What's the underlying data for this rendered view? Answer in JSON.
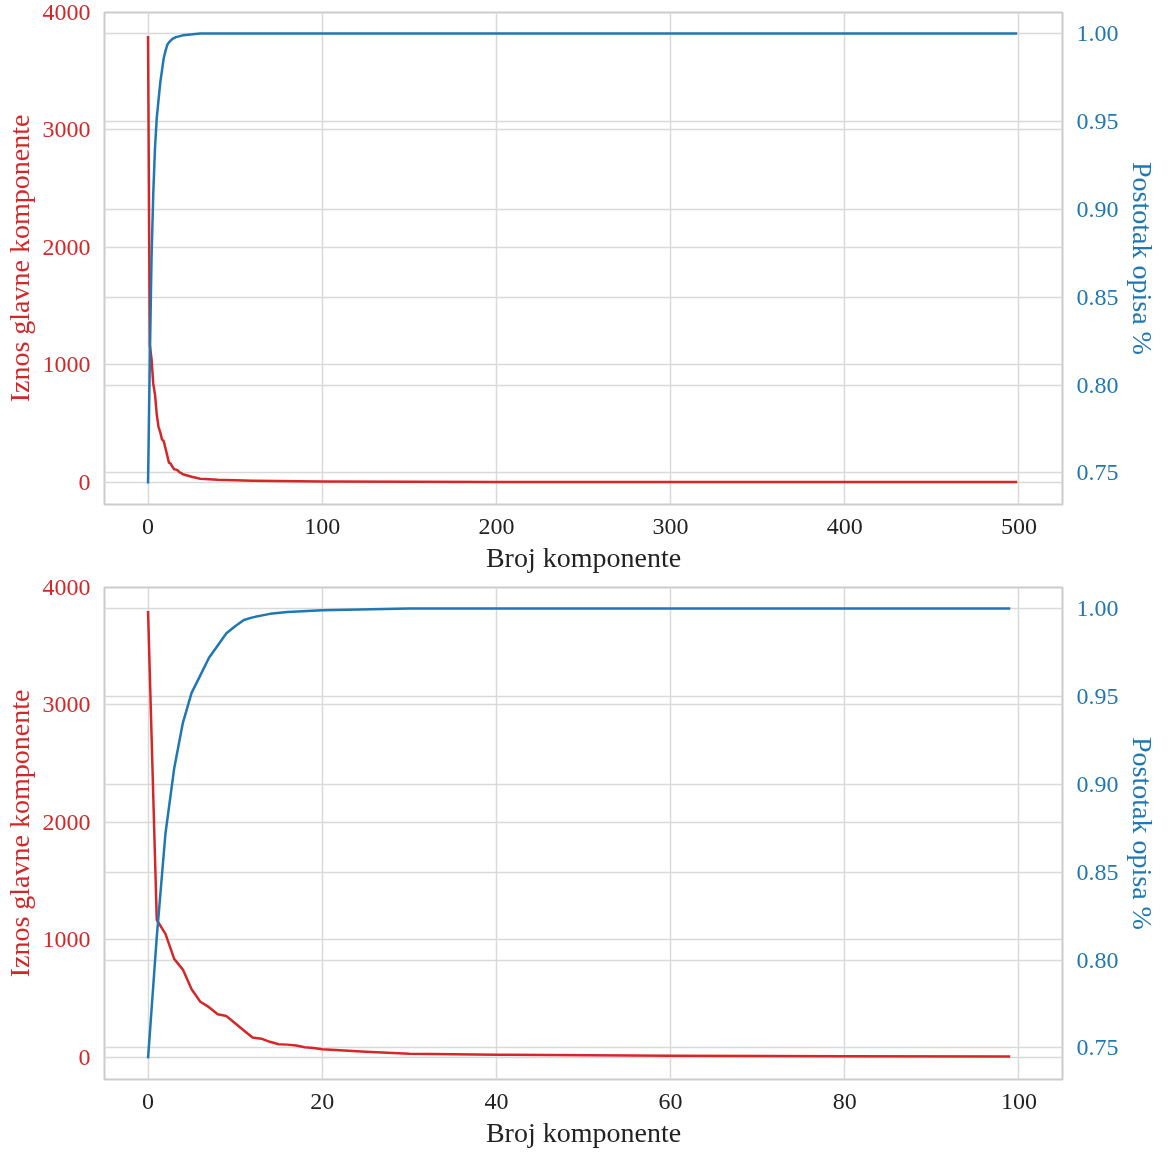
{
  "chart_data": [
    {
      "type": "line",
      "xlabel": "Broj komponente",
      "ylabel": "Iznos glavne komponente",
      "y2label": "Postotak opisa %",
      "xlim": [
        -25,
        525
      ],
      "xticks": [
        0,
        100,
        200,
        300,
        400,
        500
      ],
      "ylim": [
        -190,
        4000
      ],
      "yticks": [
        0,
        1000,
        2000,
        3000,
        4000
      ],
      "y2lim": [
        0.732,
        1.012
      ],
      "y2ticks": [
        {
          "value": 0.75,
          "label": "0.75"
        },
        {
          "value": 0.8,
          "label": "0.80"
        },
        {
          "value": 0.85,
          "label": "0.85"
        },
        {
          "value": 0.9,
          "label": "0.90"
        },
        {
          "value": 0.95,
          "label": "0.95"
        },
        {
          "value": 1.0,
          "label": "1.00"
        }
      ],
      "grid": true,
      "line_style": "solid",
      "marker": "none",
      "series": [
        {
          "color": "#d62728",
          "x": [
            0,
            1,
            2,
            3,
            4,
            5,
            6,
            7,
            8,
            9,
            10,
            11,
            12,
            13,
            14,
            15,
            16,
            17,
            18,
            19,
            20,
            25,
            30,
            40,
            60,
            100,
            200,
            300,
            400,
            499
          ],
          "values": [
            3800,
            1170,
            1050,
            837,
            746,
            578,
            472,
            426,
            365,
            350,
            289,
            228,
            167,
            158,
            131,
            110,
            107,
            100,
            85,
            78,
            67,
            46,
            30,
            21,
            12,
            5,
            2,
            1,
            1,
            1
          ]
        },
        {
          "color": "#1f77b4",
          "axis": "y2",
          "x": [
            0,
            1,
            2,
            3,
            4,
            5,
            6,
            7,
            8,
            9,
            10,
            11,
            12,
            14,
            16,
            20,
            30,
            100,
            200,
            300,
            400,
            499
          ],
          "values": [
            0.744,
            0.813,
            0.872,
            0.909,
            0.935,
            0.952,
            0.962,
            0.972,
            0.979,
            0.986,
            0.99,
            0.9935,
            0.995,
            0.997,
            0.998,
            0.999,
            1.0,
            1.0,
            1.0,
            1.0,
            1.0,
            1.0
          ]
        }
      ]
    },
    {
      "type": "line",
      "xlabel": "Broj komponente",
      "ylabel": "Iznos glavne komponente",
      "y2label": "Postotak opisa %",
      "xlim": [
        -5,
        105
      ],
      "xticks": [
        0,
        20,
        40,
        60,
        80,
        100
      ],
      "ylim": [
        -190,
        4000
      ],
      "yticks": [
        0,
        1000,
        2000,
        3000,
        4000
      ],
      "y2lim": [
        0.732,
        1.012
      ],
      "y2ticks": [
        {
          "value": 0.75,
          "label": "0.75"
        },
        {
          "value": 0.8,
          "label": "0.80"
        },
        {
          "value": 0.85,
          "label": "0.85"
        },
        {
          "value": 0.9,
          "label": "0.90"
        },
        {
          "value": 0.95,
          "label": "0.95"
        },
        {
          "value": 1.0,
          "label": "1.00"
        }
      ],
      "grid": true,
      "line_style": "solid",
      "marker": "none",
      "series": [
        {
          "color": "#d62728",
          "x": [
            0,
            1,
            2,
            3,
            4,
            5,
            6,
            7,
            8,
            9,
            10,
            11,
            12,
            13,
            14,
            15,
            16,
            17,
            18,
            19,
            20,
            25,
            30,
            40,
            60,
            80,
            99
          ],
          "values": [
            3800,
            1170,
            1050,
            837,
            746,
            578,
            472,
            426,
            365,
            350,
            289,
            228,
            167,
            158,
            131,
            110,
            107,
            100,
            85,
            78,
            67,
            46,
            30,
            21,
            12,
            8,
            5
          ]
        },
        {
          "color": "#1f77b4",
          "axis": "y2",
          "x": [
            0,
            1,
            2,
            3,
            4,
            5,
            6,
            7,
            8,
            9,
            10,
            11,
            12,
            14,
            16,
            20,
            30,
            60,
            99
          ],
          "values": [
            0.744,
            0.813,
            0.872,
            0.909,
            0.935,
            0.952,
            0.962,
            0.972,
            0.979,
            0.986,
            0.99,
            0.9935,
            0.995,
            0.997,
            0.998,
            0.999,
            1.0,
            1.0,
            1.0
          ]
        }
      ]
    }
  ]
}
